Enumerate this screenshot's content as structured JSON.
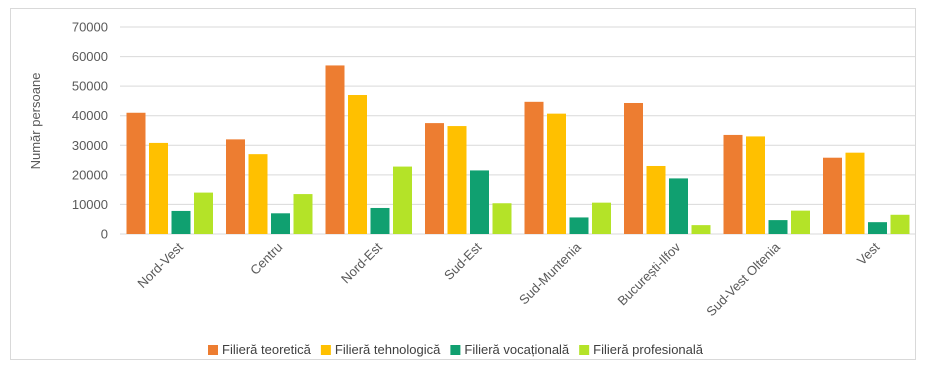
{
  "chart_data": {
    "type": "bar",
    "ylabel": "Număr persoane",
    "ylim": [
      0,
      70000
    ],
    "yticks": [
      0,
      10000,
      20000,
      30000,
      40000,
      50000,
      60000,
      70000
    ],
    "grid": true,
    "legend_position": "bottom",
    "categories": [
      "Nord-Vest",
      "Centru",
      "Nord-Est",
      "Sud-Est",
      "Sud-Muntenia",
      "București-Ilfov",
      "Sud-Vest Oltenia",
      "Vest"
    ],
    "series": [
      {
        "name": "Filieră teoretică",
        "color": "#ED7D31",
        "values": [
          41000,
          32000,
          57000,
          37500,
          44700,
          44300,
          33500,
          25800
        ]
      },
      {
        "name": "Filieră tehnologică",
        "color": "#FFC000",
        "values": [
          30800,
          27000,
          47000,
          36500,
          40700,
          23000,
          33000,
          27500
        ]
      },
      {
        "name": "Filieră vocațională",
        "color": "#10A070",
        "values": [
          7800,
          7000,
          8800,
          21500,
          5600,
          18800,
          4700,
          4000
        ]
      },
      {
        "name": "Filieră profesională",
        "color": "#B4E328",
        "values": [
          14000,
          13500,
          22800,
          10400,
          10600,
          3000,
          7900,
          6500
        ]
      }
    ]
  }
}
